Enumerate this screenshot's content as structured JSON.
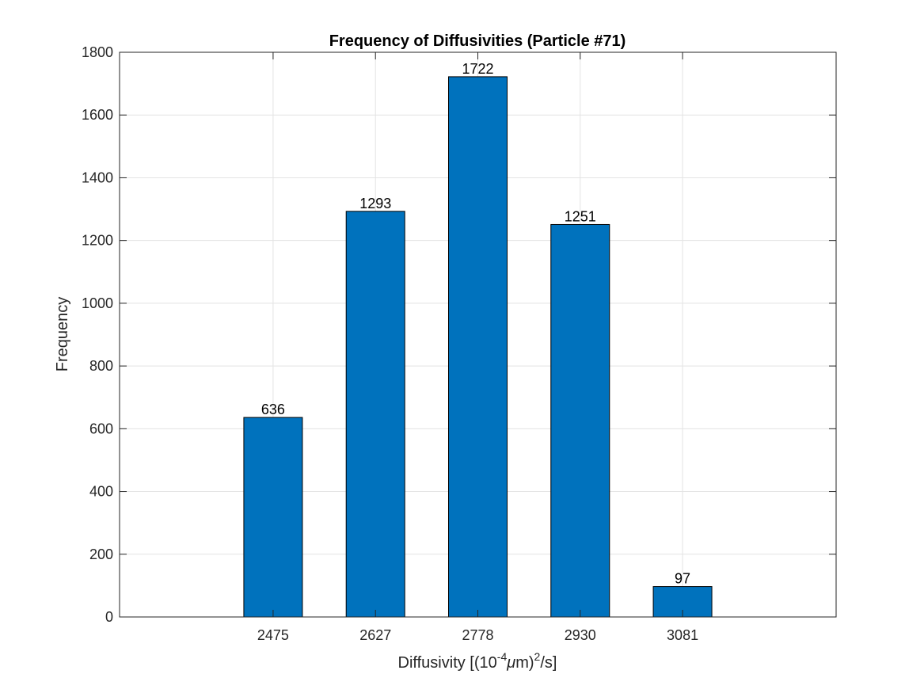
{
  "chart_data": {
    "type": "bar",
    "title": "Frequency of Diffusivities (Particle #71)",
    "xlabel": {
      "prefix": "Diffusivity [(10",
      "exp1": "-4",
      "mu": "μ",
      "mid": "m)",
      "exp2": "2",
      "suffix": "/s]"
    },
    "ylabel": "Frequency",
    "categories": [
      "2475",
      "2627",
      "2778",
      "2930",
      "3081"
    ],
    "values": [
      636,
      1293,
      1722,
      1251,
      97
    ],
    "ylim": [
      0,
      1800
    ],
    "yticks": [
      0,
      200,
      400,
      600,
      800,
      1000,
      1200,
      1400,
      1600,
      1800
    ],
    "grid": true,
    "bar_color": "#0072BD"
  }
}
